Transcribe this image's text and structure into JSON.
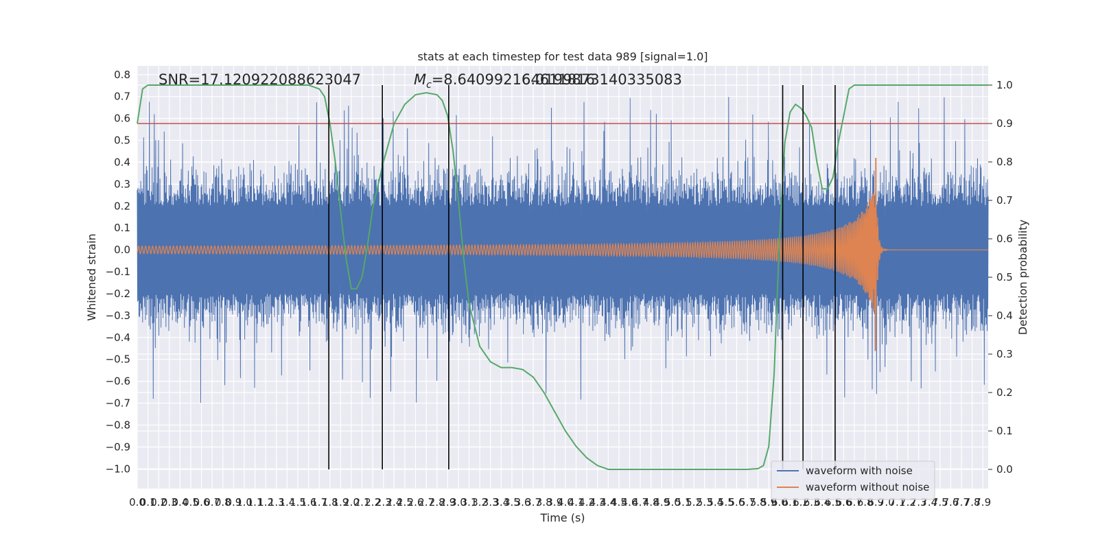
{
  "chart_data": {
    "type": "line",
    "title": "stats at each timestep for test data 989 [signal=1.0]",
    "xlabel": "Time (s)",
    "ylabel": "Whitened strain",
    "y2label": "Detection probability",
    "xlim": [
      0.0,
      7.95
    ],
    "ylim": [
      -1.09,
      0.84
    ],
    "y2lim": [
      -0.05,
      1.05
    ],
    "grid": true,
    "legend_position": "lower-right",
    "annotations": {
      "snr": "SNR=17.120922088623047",
      "mc_a": "M_c=8.640992164611816",
      "mc_b": "6.0199873140335083"
    },
    "colors": {
      "noise": "#4c72b0",
      "clean": "#dd8452",
      "probability": "#55a868",
      "threshold": "#c44e52",
      "markers": "#000000"
    },
    "x_ticks": [
      "0.0",
      "0.1",
      "0.2",
      "0.3",
      "0.4",
      "0.5",
      "0.6",
      "0.7",
      "0.8",
      "0.9",
      "1.0",
      "1.1",
      "1.2",
      "1.3",
      "1.4",
      "1.5",
      "1.6",
      "1.7",
      "1.8",
      "1.9",
      "2.0",
      "2.1",
      "2.2",
      "2.3",
      "2.4",
      "2.5",
      "2.6",
      "2.7",
      "2.8",
      "2.9",
      "3.0",
      "3.1",
      "3.2",
      "3.3",
      "3.4",
      "3.5",
      "3.6",
      "3.7",
      "3.8",
      "3.9",
      "4.0",
      "4.1",
      "4.2",
      "4.3",
      "4.4",
      "4.5",
      "4.6",
      "4.7",
      "4.8",
      "4.9",
      "5.0",
      "5.1",
      "5.2",
      "5.3",
      "5.4",
      "5.5",
      "5.6",
      "5.7",
      "5.8",
      "5.9",
      "6.0",
      "6.1",
      "6.2",
      "6.3",
      "6.4",
      "6.5",
      "6.6",
      "6.7",
      "6.8",
      "6.9",
      "7.0",
      "7.1",
      "7.2",
      "7.3",
      "7.4",
      "7.5",
      "7.6",
      "7.7",
      "7.8",
      "7.9"
    ],
    "y_ticks": [
      "0.8",
      "0.7",
      "0.6",
      "0.5",
      "0.4",
      "0.3",
      "0.2",
      "0.1",
      "0.0",
      "−0.1",
      "−0.2",
      "−0.3",
      "−0.4",
      "−0.5",
      "−0.6",
      "−0.7",
      "−0.8",
      "−0.9",
      "−1.0"
    ],
    "y2_ticks": [
      "1.0",
      "0.9",
      "0.8",
      "0.7",
      "0.6",
      "0.5",
      "0.4",
      "0.3",
      "0.2",
      "0.1",
      "0.0"
    ],
    "threshold": 0.9,
    "vertical_markers": [
      1.79,
      2.29,
      2.91,
      6.03,
      6.22,
      6.52
    ],
    "series": [
      {
        "name": "waveform with noise",
        "type": "noise",
        "amplitude_envelope": [
          0.4,
          0.48
        ]
      },
      {
        "name": "waveform without noise",
        "type": "chirp",
        "merger_time": 6.9,
        "peak": [
          0.42,
          -0.46
        ]
      },
      {
        "type": "probability",
        "x": [
          0.0,
          0.05,
          0.1,
          0.2,
          0.4,
          0.8,
          1.2,
          1.6,
          1.7,
          1.75,
          1.8,
          1.85,
          1.9,
          1.95,
          2.0,
          2.05,
          2.1,
          2.15,
          2.2,
          2.3,
          2.4,
          2.5,
          2.6,
          2.7,
          2.8,
          2.85,
          2.9,
          2.95,
          3.0,
          3.05,
          3.1,
          3.2,
          3.3,
          3.4,
          3.5,
          3.6,
          3.7,
          3.8,
          3.9,
          4.0,
          4.1,
          4.2,
          4.3,
          4.4,
          5.0,
          5.5,
          5.7,
          5.8,
          5.85,
          5.9,
          5.95,
          6.0,
          6.05,
          6.1,
          6.15,
          6.2,
          6.25,
          6.3,
          6.35,
          6.4,
          6.45,
          6.5,
          6.55,
          6.6,
          6.65,
          6.7,
          6.8,
          7.0,
          7.5,
          7.95
        ],
        "y": [
          0.9,
          0.99,
          1.0,
          1.0,
          1.0,
          1.0,
          1.0,
          1.0,
          0.99,
          0.97,
          0.9,
          0.8,
          0.67,
          0.55,
          0.47,
          0.47,
          0.5,
          0.58,
          0.68,
          0.8,
          0.9,
          0.95,
          0.975,
          0.98,
          0.975,
          0.96,
          0.92,
          0.83,
          0.7,
          0.55,
          0.43,
          0.32,
          0.28,
          0.265,
          0.265,
          0.26,
          0.24,
          0.2,
          0.15,
          0.1,
          0.06,
          0.03,
          0.01,
          0.0,
          0.0,
          0.0,
          0.0,
          0.002,
          0.01,
          0.06,
          0.25,
          0.6,
          0.85,
          0.93,
          0.95,
          0.94,
          0.92,
          0.89,
          0.8,
          0.73,
          0.73,
          0.76,
          0.85,
          0.92,
          0.99,
          1.0,
          1.0,
          1.0,
          1.0,
          1.0
        ]
      }
    ]
  }
}
